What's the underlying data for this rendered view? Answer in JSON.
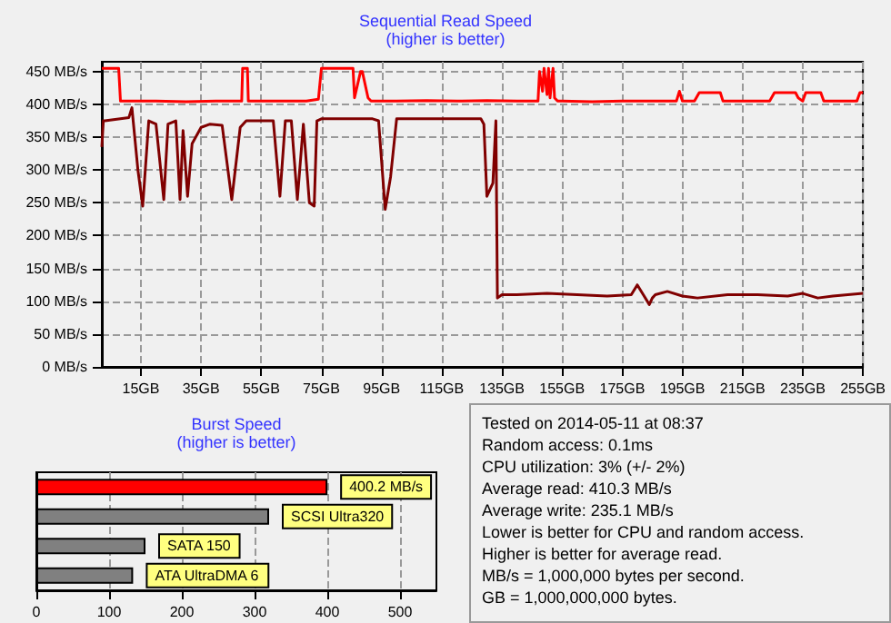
{
  "chart_data": [
    {
      "type": "line",
      "title": "Sequential Read Speed",
      "subtitle": "(higher is better)",
      "xlim": [
        2,
        255
      ],
      "xticks": [
        {
          "value": 15,
          "label": "15GB"
        },
        {
          "value": 35,
          "label": "35GB"
        },
        {
          "value": 55,
          "label": "55GB"
        },
        {
          "value": 75,
          "label": "75GB"
        },
        {
          "value": 95,
          "label": "95GB"
        },
        {
          "value": 115,
          "label": "115GB"
        },
        {
          "value": 135,
          "label": "135GB"
        },
        {
          "value": 155,
          "label": "155GB"
        },
        {
          "value": 175,
          "label": "175GB"
        },
        {
          "value": 195,
          "label": "195GB"
        },
        {
          "value": 215,
          "label": "215GB"
        },
        {
          "value": 235,
          "label": "235GB"
        },
        {
          "value": 255,
          "label": "255GB"
        }
      ],
      "ylim": [
        0,
        465
      ],
      "yticks": [
        {
          "value": 0,
          "label": "0 MB/s"
        },
        {
          "value": 50,
          "label": "50 MB/s"
        },
        {
          "value": 100,
          "label": "100 MB/s"
        },
        {
          "value": 150,
          "label": "150 MB/s"
        },
        {
          "value": 200,
          "label": "200 MB/s"
        },
        {
          "value": 250,
          "label": "250 MB/s"
        },
        {
          "value": 300,
          "label": "300 MB/s"
        },
        {
          "value": 350,
          "label": "350 MB/s"
        },
        {
          "value": 400,
          "label": "400 MB/s"
        },
        {
          "value": 450,
          "label": "450 MB/s"
        }
      ],
      "grid": true,
      "marker": "none",
      "line_style": "solid",
      "series": [
        {
          "color": "#ff0000",
          "x": [
            2,
            7.6,
            8.2,
            20,
            30,
            40,
            48.5,
            48.8,
            50.4,
            50.7,
            60,
            70,
            74,
            75,
            85.5,
            86,
            88,
            88.6,
            90.5,
            91.5,
            100,
            110,
            120,
            130,
            140,
            147,
            147.5,
            148.5,
            149,
            150,
            150.5,
            151,
            152,
            152.5,
            153.5,
            155,
            165,
            175,
            185,
            193,
            194,
            195,
            199,
            200.6,
            207.6,
            208.5,
            215,
            222,
            224,
            225.6,
            232.6,
            233.5,
            235,
            236,
            241,
            242,
            250,
            253,
            254,
            255
          ],
          "values": [
            455,
            455,
            405,
            405,
            404,
            405,
            405,
            455,
            455,
            405,
            405,
            405,
            408,
            455,
            455,
            410,
            450,
            450,
            410,
            405,
            405,
            406,
            405,
            406,
            405,
            405,
            450,
            420,
            455,
            415,
            455,
            410,
            455,
            410,
            405,
            405,
            404,
            405,
            405,
            405,
            420,
            405,
            405,
            418,
            418,
            405,
            405,
            405,
            405,
            418,
            418,
            410,
            405,
            418,
            418,
            405,
            405,
            405,
            418,
            418
          ]
        },
        {
          "color": "#800000",
          "x": [
            2,
            2.5,
            3,
            11,
            12,
            14,
            15.6,
            17.6,
            20,
            22.6,
            24,
            26.6,
            28,
            29,
            30.5,
            32,
            35,
            38,
            42,
            45.2,
            48,
            50,
            55,
            59,
            61.2,
            63,
            65,
            67,
            69,
            71,
            72.6,
            73.5,
            75,
            80,
            92,
            94,
            96.2,
            98,
            100,
            110,
            120,
            128,
            129,
            130,
            132,
            133,
            133.5,
            135,
            140,
            150,
            160,
            170,
            178,
            180,
            182,
            184,
            185,
            186,
            190,
            195,
            200,
            210,
            220,
            230,
            235,
            240,
            245,
            250,
            255
          ],
          "values": [
            335,
            375,
            375,
            380,
            395,
            300,
            245,
            375,
            370,
            255,
            370,
            375,
            255,
            360,
            260,
            340,
            365,
            370,
            368,
            255,
            365,
            375,
            375,
            375,
            260,
            375,
            375,
            255,
            370,
            250,
            245,
            375,
            378,
            378,
            378,
            375,
            240,
            290,
            378,
            378,
            378,
            378,
            370,
            260,
            280,
            375,
            105,
            110,
            110,
            112,
            110,
            108,
            110,
            125,
            110,
            95,
            105,
            110,
            115,
            108,
            105,
            110,
            110,
            108,
            112,
            105,
            108,
            110,
            112
          ]
        }
      ]
    },
    {
      "type": "bar",
      "orientation": "horizontal",
      "title": "Burst Speed",
      "subtitle": "(higher is better)",
      "categories": [
        null,
        "SCSI Ultra320",
        "SATA 150",
        "ATA UltraDMA 6"
      ],
      "values": [
        400.2,
        320,
        150,
        133
      ],
      "colors": [
        "#ff0000",
        "#808080",
        "#808080",
        "#808080"
      ],
      "value_labels": [
        "400.2 MB/s",
        null,
        null,
        null
      ],
      "xlim": [
        0,
        550
      ],
      "xticks": [
        0,
        100,
        200,
        300,
        400,
        500
      ],
      "grid": "x",
      "tick_labels": "x"
    },
    {
      "type": "other",
      "annotations": [
        "Tested on 2014-05-11 at 08:37",
        "Random access: 0.1ms",
        "CPU utilization: 3% (+/- 2%)",
        "Average read: 410.3 MB/s",
        "Average write: 235.1 MB/s",
        "Lower is better for CPU and random access.",
        "Higher is better for average read.",
        "MB/s = 1,000,000 bytes per second.",
        "GB = 1,000,000,000 bytes."
      ]
    }
  ]
}
